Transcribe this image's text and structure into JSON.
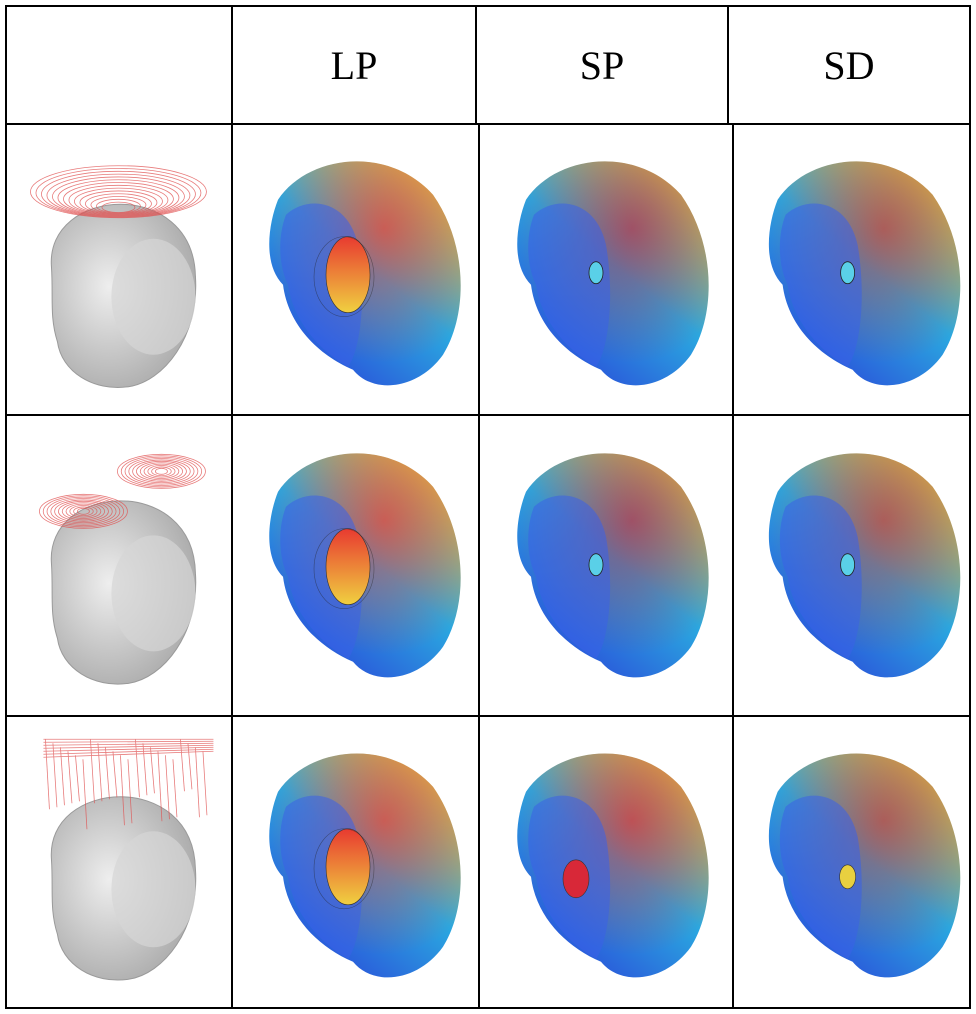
{
  "table": {
    "header": {
      "corner": "",
      "columns": [
        "LP",
        "SP",
        "SD"
      ]
    },
    "rows": [
      {
        "coil": {
          "type": "single-circular",
          "icon": "head-with-circular-coil-icon"
        },
        "cells": [
          {
            "column": "LP",
            "focus": "large-red-ellipse",
            "hot_color": "#e8403a"
          },
          {
            "column": "SP",
            "focus": "small-ring",
            "hot_color": "#b03050"
          },
          {
            "column": "SD",
            "focus": "small-ring",
            "hot_color": "#c04040"
          }
        ]
      },
      {
        "coil": {
          "type": "figure-eight",
          "icon": "head-with-figure-eight-coil-icon"
        },
        "cells": [
          {
            "column": "LP",
            "focus": "large-red-ellipse",
            "hot_color": "#e8403a"
          },
          {
            "column": "SP",
            "focus": "small-ring",
            "hot_color": "#b03050"
          },
          {
            "column": "SD",
            "focus": "small-ring",
            "hot_color": "#c04040"
          }
        ]
      },
      {
        "coil": {
          "type": "multi-coil-array",
          "icon": "head-with-coil-array-icon"
        },
        "cells": [
          {
            "column": "LP",
            "focus": "large-red-ellipse",
            "hot_color": "#e8403a"
          },
          {
            "column": "SP",
            "focus": "medium-red-ellipse",
            "hot_color": "#d8303a"
          },
          {
            "column": "SD",
            "focus": "small-yellow-ellipse",
            "hot_color": "#c04040"
          }
        ]
      }
    ]
  },
  "colors": {
    "grid_line": "#000000",
    "brain_low": "#2a3ad8",
    "brain_mid": "#2aa8e0",
    "brain_high": "#e8d040",
    "skull": "#c8c8c8",
    "coil_line": "#e05050"
  }
}
